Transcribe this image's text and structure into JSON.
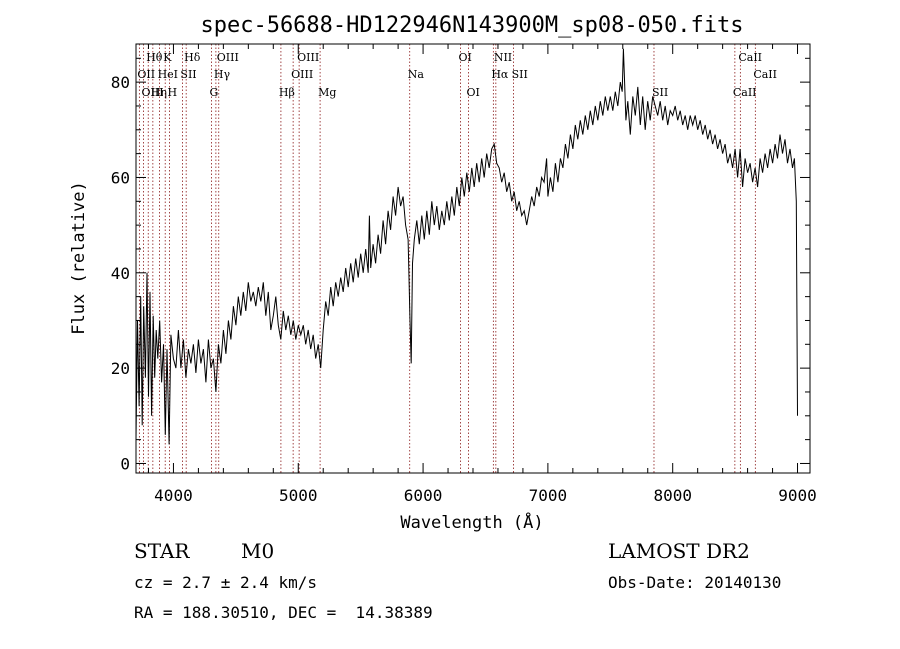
{
  "chart_data": {
    "type": "line",
    "title": "spec-56688-HD122946N143900M_sp08-050.fits",
    "xlabel": "Wavelength (Å)",
    "ylabel": "Flux (relative)",
    "xlim": [
      3700,
      9100
    ],
    "ylim": [
      -2,
      88
    ],
    "xticks": [
      4000,
      5000,
      6000,
      7000,
      8000,
      9000
    ],
    "yticks": [
      0,
      20,
      40,
      60,
      80
    ],
    "grid": false,
    "legend": "none",
    "line_color": "#000000",
    "marker_color": "#8b1a1a",
    "spectrum": [
      [
        3700,
        5
      ],
      [
        3712,
        30
      ],
      [
        3725,
        12
      ],
      [
        3738,
        35
      ],
      [
        3750,
        8
      ],
      [
        3762,
        33
      ],
      [
        3775,
        18
      ],
      [
        3788,
        40
      ],
      [
        3800,
        14
      ],
      [
        3812,
        36
      ],
      [
        3825,
        10
      ],
      [
        3838,
        31
      ],
      [
        3850,
        18
      ],
      [
        3862,
        28
      ],
      [
        3875,
        22
      ],
      [
        3890,
        30
      ],
      [
        3905,
        17
      ],
      [
        3920,
        25
      ],
      [
        3935,
        6
      ],
      [
        3948,
        24
      ],
      [
        3965,
        4
      ],
      [
        3980,
        27
      ],
      [
        4000,
        22
      ],
      [
        4020,
        20
      ],
      [
        4040,
        28
      ],
      [
        4060,
        20
      ],
      [
        4080,
        26
      ],
      [
        4100,
        18
      ],
      [
        4120,
        24
      ],
      [
        4140,
        21
      ],
      [
        4160,
        25
      ],
      [
        4180,
        19
      ],
      [
        4200,
        26
      ],
      [
        4220,
        21
      ],
      [
        4240,
        24
      ],
      [
        4260,
        17
      ],
      [
        4280,
        26
      ],
      [
        4300,
        20
      ],
      [
        4320,
        22
      ],
      [
        4340,
        15
      ],
      [
        4360,
        25
      ],
      [
        4380,
        21
      ],
      [
        4400,
        28
      ],
      [
        4420,
        23
      ],
      [
        4440,
        30
      ],
      [
        4460,
        26
      ],
      [
        4480,
        33
      ],
      [
        4500,
        29
      ],
      [
        4520,
        35
      ],
      [
        4540,
        31
      ],
      [
        4560,
        36
      ],
      [
        4580,
        32
      ],
      [
        4600,
        38
      ],
      [
        4620,
        34
      ],
      [
        4640,
        36
      ],
      [
        4660,
        33
      ],
      [
        4680,
        37
      ],
      [
        4700,
        34
      ],
      [
        4720,
        38
      ],
      [
        4740,
        31
      ],
      [
        4760,
        36
      ],
      [
        4780,
        28
      ],
      [
        4800,
        31
      ],
      [
        4820,
        35
      ],
      [
        4840,
        29
      ],
      [
        4860,
        26
      ],
      [
        4880,
        32
      ],
      [
        4900,
        28
      ],
      [
        4920,
        31
      ],
      [
        4940,
        27
      ],
      [
        4960,
        30
      ],
      [
        4980,
        26
      ],
      [
        5000,
        29
      ],
      [
        5020,
        27
      ],
      [
        5040,
        29
      ],
      [
        5060,
        25
      ],
      [
        5080,
        28
      ],
      [
        5100,
        24
      ],
      [
        5120,
        27
      ],
      [
        5140,
        22
      ],
      [
        5160,
        25
      ],
      [
        5180,
        20
      ],
      [
        5200,
        28
      ],
      [
        5220,
        34
      ],
      [
        5240,
        31
      ],
      [
        5260,
        37
      ],
      [
        5280,
        33
      ],
      [
        5300,
        38
      ],
      [
        5320,
        35
      ],
      [
        5340,
        39
      ],
      [
        5360,
        36
      ],
      [
        5380,
        41
      ],
      [
        5400,
        37
      ],
      [
        5420,
        42
      ],
      [
        5440,
        38
      ],
      [
        5460,
        43
      ],
      [
        5480,
        39
      ],
      [
        5500,
        44
      ],
      [
        5520,
        40
      ],
      [
        5540,
        45
      ],
      [
        5560,
        40
      ],
      [
        5570,
        52
      ],
      [
        5580,
        41
      ],
      [
        5600,
        46
      ],
      [
        5620,
        42
      ],
      [
        5640,
        48
      ],
      [
        5660,
        44
      ],
      [
        5680,
        51
      ],
      [
        5700,
        46
      ],
      [
        5720,
        53
      ],
      [
        5740,
        49
      ],
      [
        5760,
        56
      ],
      [
        5780,
        52
      ],
      [
        5800,
        58
      ],
      [
        5820,
        54
      ],
      [
        5840,
        56
      ],
      [
        5860,
        50
      ],
      [
        5880,
        47
      ],
      [
        5895,
        30
      ],
      [
        5905,
        21
      ],
      [
        5915,
        42
      ],
      [
        5930,
        47
      ],
      [
        5950,
        51
      ],
      [
        5970,
        46
      ],
      [
        5990,
        52
      ],
      [
        6010,
        47
      ],
      [
        6030,
        53
      ],
      [
        6050,
        48
      ],
      [
        6070,
        55
      ],
      [
        6090,
        50
      ],
      [
        6110,
        54
      ],
      [
        6130,
        49
      ],
      [
        6150,
        53
      ],
      [
        6170,
        50
      ],
      [
        6190,
        55
      ],
      [
        6210,
        51
      ],
      [
        6230,
        56
      ],
      [
        6250,
        52
      ],
      [
        6270,
        58
      ],
      [
        6290,
        54
      ],
      [
        6310,
        60
      ],
      [
        6330,
        56
      ],
      [
        6350,
        61
      ],
      [
        6370,
        57
      ],
      [
        6390,
        62
      ],
      [
        6410,
        58
      ],
      [
        6430,
        63
      ],
      [
        6450,
        59
      ],
      [
        6470,
        64
      ],
      [
        6490,
        60
      ],
      [
        6510,
        65
      ],
      [
        6530,
        62
      ],
      [
        6550,
        66
      ],
      [
        6570,
        67
      ],
      [
        6590,
        63
      ],
      [
        6610,
        62
      ],
      [
        6630,
        59
      ],
      [
        6650,
        61
      ],
      [
        6670,
        57
      ],
      [
        6690,
        59
      ],
      [
        6710,
        55
      ],
      [
        6730,
        57
      ],
      [
        6750,
        53
      ],
      [
        6770,
        55
      ],
      [
        6790,
        52
      ],
      [
        6810,
        53
      ],
      [
        6830,
        50
      ],
      [
        6850,
        53
      ],
      [
        6870,
        56
      ],
      [
        6890,
        54
      ],
      [
        6910,
        58
      ],
      [
        6930,
        56
      ],
      [
        6950,
        60
      ],
      [
        6970,
        59
      ],
      [
        6990,
        64
      ],
      [
        7000,
        56
      ],
      [
        7020,
        60
      ],
      [
        7040,
        57
      ],
      [
        7060,
        63
      ],
      [
        7080,
        59
      ],
      [
        7100,
        64
      ],
      [
        7120,
        62
      ],
      [
        7140,
        67
      ],
      [
        7160,
        64
      ],
      [
        7180,
        69
      ],
      [
        7200,
        66
      ],
      [
        7220,
        71
      ],
      [
        7240,
        68
      ],
      [
        7260,
        72
      ],
      [
        7280,
        69
      ],
      [
        7300,
        73
      ],
      [
        7320,
        70
      ],
      [
        7340,
        74
      ],
      [
        7360,
        71
      ],
      [
        7380,
        75
      ],
      [
        7400,
        72
      ],
      [
        7420,
        76
      ],
      [
        7440,
        73
      ],
      [
        7460,
        77
      ],
      [
        7480,
        74
      ],
      [
        7500,
        77
      ],
      [
        7520,
        74
      ],
      [
        7540,
        78
      ],
      [
        7560,
        75
      ],
      [
        7580,
        80
      ],
      [
        7595,
        78
      ],
      [
        7605,
        87
      ],
      [
        7615,
        80
      ],
      [
        7625,
        72
      ],
      [
        7640,
        76
      ],
      [
        7660,
        69
      ],
      [
        7680,
        77
      ],
      [
        7700,
        73
      ],
      [
        7720,
        79
      ],
      [
        7740,
        71
      ],
      [
        7760,
        77
      ],
      [
        7780,
        70
      ],
      [
        7800,
        76
      ],
      [
        7820,
        72
      ],
      [
        7840,
        77
      ],
      [
        7860,
        75
      ],
      [
        7880,
        73
      ],
      [
        7900,
        76
      ],
      [
        7920,
        72
      ],
      [
        7940,
        75
      ],
      [
        7960,
        71
      ],
      [
        7980,
        74
      ],
      [
        8000,
        73
      ],
      [
        8020,
        75
      ],
      [
        8040,
        72
      ],
      [
        8060,
        74
      ],
      [
        8080,
        71
      ],
      [
        8100,
        73
      ],
      [
        8120,
        70
      ],
      [
        8140,
        73
      ],
      [
        8160,
        71
      ],
      [
        8180,
        73
      ],
      [
        8200,
        70
      ],
      [
        8220,
        72
      ],
      [
        8240,
        69
      ],
      [
        8260,
        71
      ],
      [
        8280,
        68
      ],
      [
        8300,
        70
      ],
      [
        8320,
        67
      ],
      [
        8340,
        69
      ],
      [
        8360,
        66
      ],
      [
        8380,
        68
      ],
      [
        8400,
        65
      ],
      [
        8420,
        67
      ],
      [
        8440,
        63
      ],
      [
        8460,
        65
      ],
      [
        8480,
        62
      ],
      [
        8500,
        66
      ],
      [
        8520,
        60
      ],
      [
        8540,
        66
      ],
      [
        8560,
        58
      ],
      [
        8580,
        64
      ],
      [
        8600,
        61
      ],
      [
        8620,
        63
      ],
      [
        8640,
        59
      ],
      [
        8660,
        62
      ],
      [
        8680,
        58
      ],
      [
        8700,
        64
      ],
      [
        8720,
        61
      ],
      [
        8740,
        65
      ],
      [
        8760,
        62
      ],
      [
        8780,
        66
      ],
      [
        8800,
        63
      ],
      [
        8820,
        67
      ],
      [
        8840,
        64
      ],
      [
        8860,
        69
      ],
      [
        8880,
        65
      ],
      [
        8900,
        68
      ],
      [
        8920,
        63
      ],
      [
        8940,
        66
      ],
      [
        8960,
        62
      ],
      [
        8975,
        64
      ],
      [
        8990,
        55
      ],
      [
        9000,
        10
      ]
    ],
    "lines": [
      {
        "label": "Hθ",
        "wavelength": 3798,
        "row": 0
      },
      {
        "label": "OII",
        "wavelength": 3727,
        "row": 1
      },
      {
        "label": "OIII",
        "wavelength": 3760,
        "row": 2
      },
      {
        "label": "Hη",
        "wavelength": 3835,
        "row": 2
      },
      {
        "label": "K",
        "wavelength": 3934,
        "row": 0
      },
      {
        "label": "HeI",
        "wavelength": 3889,
        "row": 1
      },
      {
        "label": "H",
        "wavelength": 3968,
        "row": 2
      },
      {
        "label": "SII",
        "wavelength": 4072,
        "row": 1
      },
      {
        "label": "Hδ",
        "wavelength": 4102,
        "row": 0
      },
      {
        "label": "OIII",
        "wavelength": 4363,
        "row": 0
      },
      {
        "label": "Hγ",
        "wavelength": 4340,
        "row": 1
      },
      {
        "label": "G",
        "wavelength": 4305,
        "row": 2
      },
      {
        "label": "OIII",
        "wavelength": 5007,
        "row": 0
      },
      {
        "label": "OIII",
        "wavelength": 4959,
        "row": 1
      },
      {
        "label": "Hβ",
        "wavelength": 4861,
        "row": 2
      },
      {
        "label": "Mg",
        "wavelength": 5175,
        "row": 2
      },
      {
        "label": "Na",
        "wavelength": 5893,
        "row": 1
      },
      {
        "label": "OI",
        "wavelength": 6300,
        "row": 0
      },
      {
        "label": "OI",
        "wavelength": 6364,
        "row": 2
      },
      {
        "label": "NII",
        "wavelength": 6583,
        "row": 0
      },
      {
        "label": "Hα",
        "wavelength": 6563,
        "row": 1
      },
      {
        "label": "SII",
        "wavelength": 6725,
        "row": 1
      },
      {
        "label": "SII",
        "wavelength": 7850,
        "row": 2
      },
      {
        "label": "CaII",
        "wavelength": 8542,
        "row": 0
      },
      {
        "label": "CaII",
        "wavelength": 8662,
        "row": 1
      },
      {
        "label": "CaII",
        "wavelength": 8498,
        "row": 2
      }
    ]
  },
  "info": {
    "class": "STAR",
    "subclass": "M0",
    "survey": "LAMOST DR2",
    "cz": "cz = 2.7 ± 2.4 km/s",
    "obs_date": "Obs-Date: 20140130",
    "coords": "RA = 188.30510, DEC =  14.38389"
  }
}
